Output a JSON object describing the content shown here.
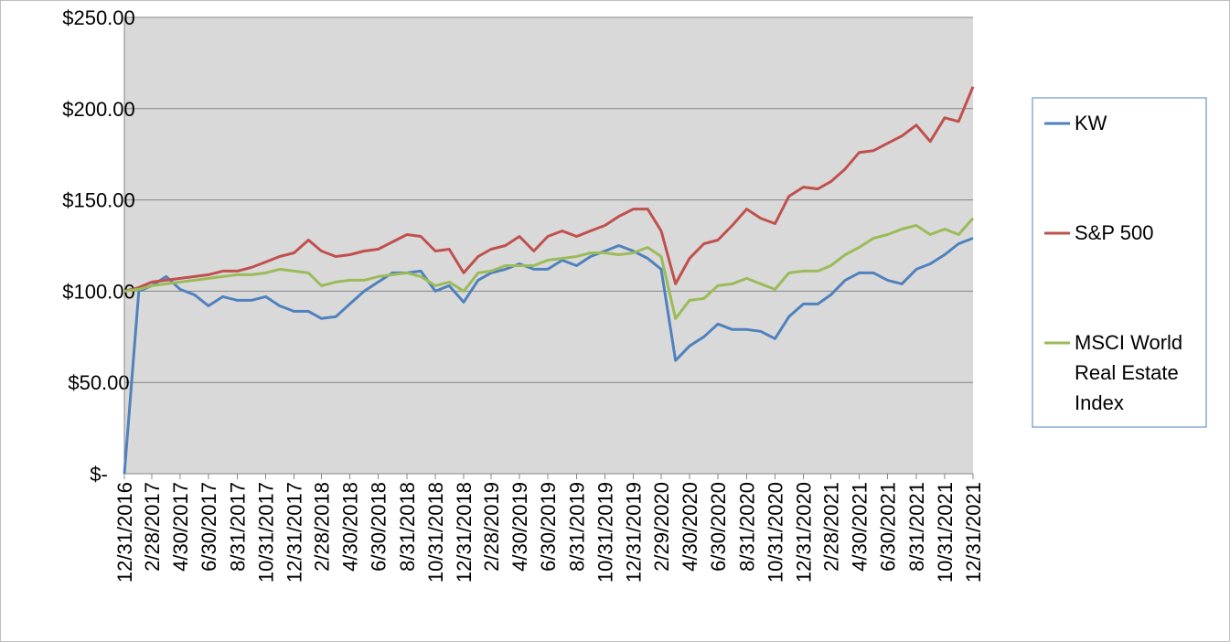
{
  "chart_data": {
    "type": "line",
    "x": [
      "12/31/2016",
      "1/31/2017",
      "2/28/2017",
      "3/31/2017",
      "4/30/2017",
      "5/31/2017",
      "6/30/2017",
      "7/31/2017",
      "8/31/2017",
      "9/30/2017",
      "10/31/2017",
      "11/30/2017",
      "12/31/2017",
      "1/31/2018",
      "2/28/2018",
      "3/31/2018",
      "4/30/2018",
      "5/31/2018",
      "6/30/2018",
      "7/31/2018",
      "8/31/2018",
      "9/30/2018",
      "10/31/2018",
      "11/30/2018",
      "12/31/2018",
      "1/31/2019",
      "2/28/2019",
      "3/31/2019",
      "4/30/2019",
      "5/31/2019",
      "6/30/2019",
      "7/31/2019",
      "8/31/2019",
      "9/30/2019",
      "10/31/2019",
      "11/30/2019",
      "12/31/2019",
      "1/31/2020",
      "2/29/2020",
      "3/31/2020",
      "4/30/2020",
      "5/31/2020",
      "6/30/2020",
      "7/31/2020",
      "8/31/2020",
      "9/30/2020",
      "10/31/2020",
      "11/30/2020",
      "12/31/2020",
      "1/31/2021",
      "2/28/2021",
      "3/31/2021",
      "4/30/2021",
      "5/31/2021",
      "6/30/2021",
      "7/31/2021",
      "8/31/2021",
      "9/30/2021",
      "10/31/2021",
      "11/30/2021",
      "12/31/2021"
    ],
    "xticks": [
      "12/31/2016",
      "2/28/2017",
      "4/30/2017",
      "6/30/2017",
      "8/31/2017",
      "10/31/2017",
      "12/31/2017",
      "2/28/2018",
      "4/30/2018",
      "6/30/2018",
      "8/31/2018",
      "10/31/2018",
      "12/31/2018",
      "2/28/2019",
      "4/30/2019",
      "6/30/2019",
      "8/31/2019",
      "10/31/2019",
      "12/31/2019",
      "2/29/2020",
      "4/30/2020",
      "6/30/2020",
      "8/31/2020",
      "10/31/2020",
      "12/31/2020",
      "2/28/2021",
      "4/30/2021",
      "6/30/2021",
      "8/31/2021",
      "10/31/2021",
      "12/31/2021"
    ],
    "ylim": [
      0,
      250
    ],
    "yticks": [
      {
        "value": 0,
        "label": "$-"
      },
      {
        "value": 50,
        "label": "$50.00"
      },
      {
        "value": 100,
        "label": "$100.00"
      },
      {
        "value": 150,
        "label": "$150.00"
      },
      {
        "value": 200,
        "label": "$200.00"
      },
      {
        "value": 250,
        "label": "$250.00"
      }
    ],
    "grid": true,
    "series": [
      {
        "name": "KW",
        "color": "#4f81bd",
        "values": [
          0,
          100,
          103,
          108,
          101,
          98,
          92,
          97,
          95,
          95,
          97,
          92,
          89,
          89,
          85,
          86,
          93,
          100,
          105,
          110,
          110,
          111,
          100,
          103,
          94,
          106,
          110,
          112,
          115,
          112,
          112,
          117,
          114,
          119,
          122,
          125,
          122,
          118,
          112,
          62,
          70,
          75,
          82,
          79,
          79,
          78,
          74,
          86,
          93,
          93,
          98,
          106,
          110,
          110,
          106,
          104,
          112,
          115,
          120,
          126,
          129
        ]
      },
      {
        "name": "S&P 500",
        "color": "#c0504d",
        "values": [
          100,
          102,
          105,
          106,
          107,
          108,
          109,
          111,
          111,
          113,
          116,
          119,
          121,
          128,
          122,
          119,
          120,
          122,
          123,
          127,
          131,
          130,
          122,
          123,
          110,
          119,
          123,
          125,
          130,
          122,
          130,
          133,
          130,
          133,
          136,
          141,
          145,
          145,
          133,
          104,
          118,
          126,
          128,
          136,
          145,
          140,
          137,
          152,
          157,
          156,
          160,
          167,
          176,
          177,
          181,
          185,
          191,
          182,
          195,
          193,
          212
        ]
      },
      {
        "name": "MSCI World Real Estate Index",
        "color": "#9bbb59",
        "values": [
          100,
          101,
          103,
          104,
          105,
          106,
          107,
          108,
          109,
          109,
          110,
          112,
          111,
          110,
          103,
          105,
          106,
          106,
          108,
          109,
          110,
          108,
          103,
          105,
          100,
          110,
          111,
          114,
          114,
          114,
          117,
          118,
          119,
          121,
          121,
          120,
          121,
          124,
          119,
          85,
          95,
          96,
          103,
          104,
          107,
          104,
          101,
          110,
          111,
          111,
          114,
          120,
          124,
          129,
          131,
          134,
          136,
          131,
          134,
          131,
          140
        ]
      }
    ]
  }
}
